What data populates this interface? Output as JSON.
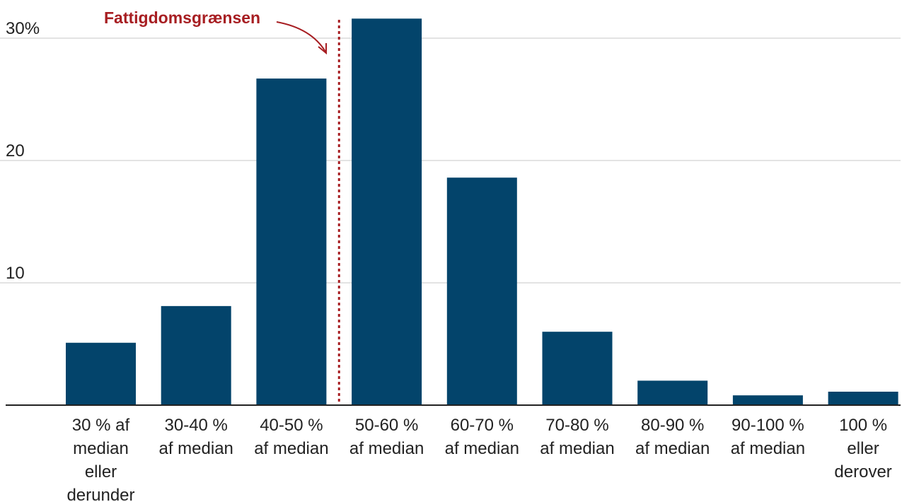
{
  "chart_data": {
    "type": "bar",
    "categories": [
      "30 % af median eller derunder",
      "30-40 % af median",
      "40-50 % af median",
      "50-60 % af median",
      "60-70 % af median",
      "70-80 % af median",
      "80-90 % af median",
      "90-100 % af median",
      "100 % eller derover"
    ],
    "category_label_lines": [
      [
        "30 % af",
        "median",
        "eller",
        "derunder"
      ],
      [
        "30-40 %",
        "af median"
      ],
      [
        "40-50 %",
        "af median"
      ],
      [
        "50-60 %",
        "af median"
      ],
      [
        "60-70 %",
        "af median"
      ],
      [
        "70-80 %",
        "af median"
      ],
      [
        "80-90 %",
        "af median"
      ],
      [
        "90-100 %",
        "af median"
      ],
      [
        "100 %",
        "eller",
        "derover"
      ]
    ],
    "values": [
      5.1,
      8.1,
      26.7,
      31.6,
      18.6,
      6.0,
      2.0,
      0.8,
      1.1
    ],
    "ylim": [
      0,
      30
    ],
    "yticks": [
      10,
      20,
      30
    ],
    "ytick_labels": [
      "10",
      "20",
      "30%"
    ],
    "grid": true,
    "bar_color": "#03446b",
    "gridline_color": "#e3e3e3",
    "axis_color": "#222222",
    "annotation": {
      "label": "Fattigdomsgrænsen",
      "color": "#a71e22",
      "position_between_categories": [
        2,
        3
      ]
    }
  }
}
